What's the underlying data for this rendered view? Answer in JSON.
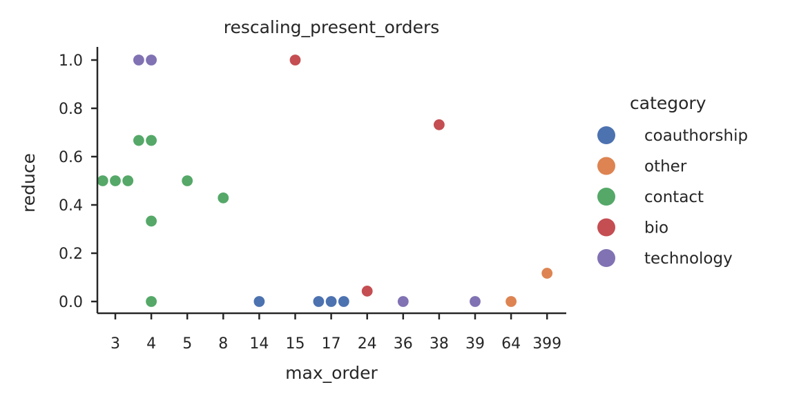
{
  "chart_data": {
    "type": "scatter",
    "title": "rescaling_present_orders",
    "xlabel": "max_order",
    "ylabel": "reduce",
    "x_categories": [
      "3",
      "4",
      "5",
      "8",
      "14",
      "15",
      "17",
      "24",
      "36",
      "38",
      "39",
      "64",
      "399"
    ],
    "y_ticks": [
      "0.0",
      "0.2",
      "0.4",
      "0.6",
      "0.8",
      "1.0"
    ],
    "ylim": [
      -0.05,
      1.05
    ],
    "grid": false,
    "legend": {
      "title": "category",
      "placement": "right"
    },
    "series": [
      {
        "name": "coauthorship",
        "color": "#4c72b0",
        "points": [
          {
            "x": "14",
            "y": 0.0
          },
          {
            "x": "17",
            "y": 0.0,
            "dodge": -0.35
          },
          {
            "x": "17",
            "y": 0.0
          },
          {
            "x": "17",
            "y": 0.0,
            "dodge": 0.35
          }
        ]
      },
      {
        "name": "other",
        "color": "#dd8452",
        "points": [
          {
            "x": "64",
            "y": 0.0
          },
          {
            "x": "399",
            "y": 0.117
          }
        ]
      },
      {
        "name": "contact",
        "color": "#55a868",
        "points": [
          {
            "x": "3",
            "y": 0.5,
            "dodge": -0.35
          },
          {
            "x": "3",
            "y": 0.5
          },
          {
            "x": "3",
            "y": 0.5,
            "dodge": 0.35
          },
          {
            "x": "4",
            "y": 0.667,
            "dodge": -0.35
          },
          {
            "x": "4",
            "y": 0.667
          },
          {
            "x": "4",
            "y": 0.333
          },
          {
            "x": "4",
            "y": 0.0
          },
          {
            "x": "5",
            "y": 0.5
          },
          {
            "x": "8",
            "y": 0.429
          }
        ]
      },
      {
        "name": "bio",
        "color": "#c44e52",
        "points": [
          {
            "x": "15",
            "y": 1.0
          },
          {
            "x": "24",
            "y": 0.043
          },
          {
            "x": "38",
            "y": 0.732
          }
        ]
      },
      {
        "name": "technology",
        "color": "#8172b3",
        "points": [
          {
            "x": "4",
            "y": 1.0,
            "dodge": -0.35
          },
          {
            "x": "4",
            "y": 1.0
          },
          {
            "x": "36",
            "y": 0.0
          },
          {
            "x": "39",
            "y": 0.0
          }
        ]
      }
    ]
  }
}
